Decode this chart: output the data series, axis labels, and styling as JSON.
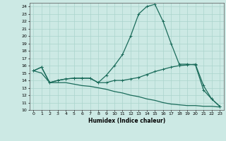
{
  "xlabel": "Humidex (Indice chaleur)",
  "ylabel": "",
  "bg_color": "#cce9e4",
  "grid_color": "#aad4cc",
  "line_color": "#1a6b5a",
  "xlim": [
    -0.5,
    23.5
  ],
  "ylim": [
    10,
    24.5
  ],
  "yticks": [
    10,
    11,
    12,
    13,
    14,
    15,
    16,
    17,
    18,
    19,
    20,
    21,
    22,
    23,
    24
  ],
  "xticks": [
    0,
    1,
    2,
    3,
    4,
    5,
    6,
    7,
    8,
    9,
    10,
    11,
    12,
    13,
    14,
    15,
    16,
    17,
    18,
    19,
    20,
    21,
    22,
    23
  ],
  "line1": [
    15.3,
    15.8,
    13.7,
    14.0,
    14.2,
    14.3,
    14.3,
    14.3,
    13.7,
    14.7,
    16.0,
    17.5,
    20.0,
    23.0,
    24.0,
    24.3,
    22.0,
    19.0,
    16.2,
    16.2,
    16.1,
    12.7,
    11.5,
    10.5
  ],
  "line2": [
    15.3,
    15.8,
    13.7,
    14.0,
    14.2,
    14.3,
    14.3,
    14.3,
    13.7,
    13.7,
    14.0,
    14.0,
    14.2,
    14.4,
    14.8,
    15.2,
    15.5,
    15.8,
    16.0,
    16.1,
    16.2,
    13.3,
    11.5,
    10.5
  ],
  "line3": [
    15.3,
    15.0,
    13.7,
    13.7,
    13.7,
    13.5,
    13.3,
    13.2,
    13.0,
    12.8,
    12.5,
    12.3,
    12.0,
    11.8,
    11.5,
    11.3,
    11.0,
    10.8,
    10.7,
    10.6,
    10.6,
    10.5,
    10.5,
    10.4
  ]
}
